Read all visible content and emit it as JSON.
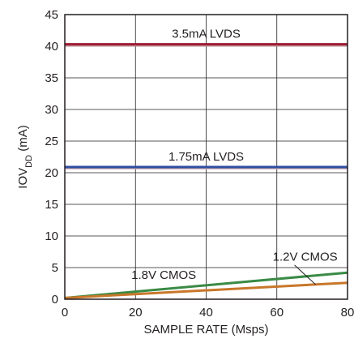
{
  "chart_data": {
    "type": "line",
    "title": "",
    "xlabel": "SAMPLE RATE (Msps)",
    "ylabel_main": "IOV",
    "ylabel_sub": "DD",
    "ylabel_unit": " (mA)",
    "xlim": [
      0,
      80
    ],
    "ylim": [
      0,
      45
    ],
    "xticks": [
      0,
      20,
      40,
      60,
      80
    ],
    "yticks": [
      0,
      5,
      10,
      15,
      20,
      25,
      30,
      35,
      40,
      45
    ],
    "grid": true,
    "series": [
      {
        "name": "3.5mA LVDS",
        "color": "#9e1b32",
        "x": [
          0,
          80
        ],
        "y": [
          40.3,
          40.3
        ]
      },
      {
        "name": "1.75mA LVDS",
        "color": "#2e4ea1",
        "x": [
          0,
          80
        ],
        "y": [
          20.9,
          20.9
        ]
      },
      {
        "name": "1.2V CMOS",
        "color": "#3a8a45",
        "x": [
          0,
          80
        ],
        "y": [
          0.2,
          4.2
        ]
      },
      {
        "name": "1.8V CMOS",
        "color": "#c8772a",
        "x": [
          0,
          80
        ],
        "y": [
          0.2,
          2.6
        ]
      }
    ]
  }
}
